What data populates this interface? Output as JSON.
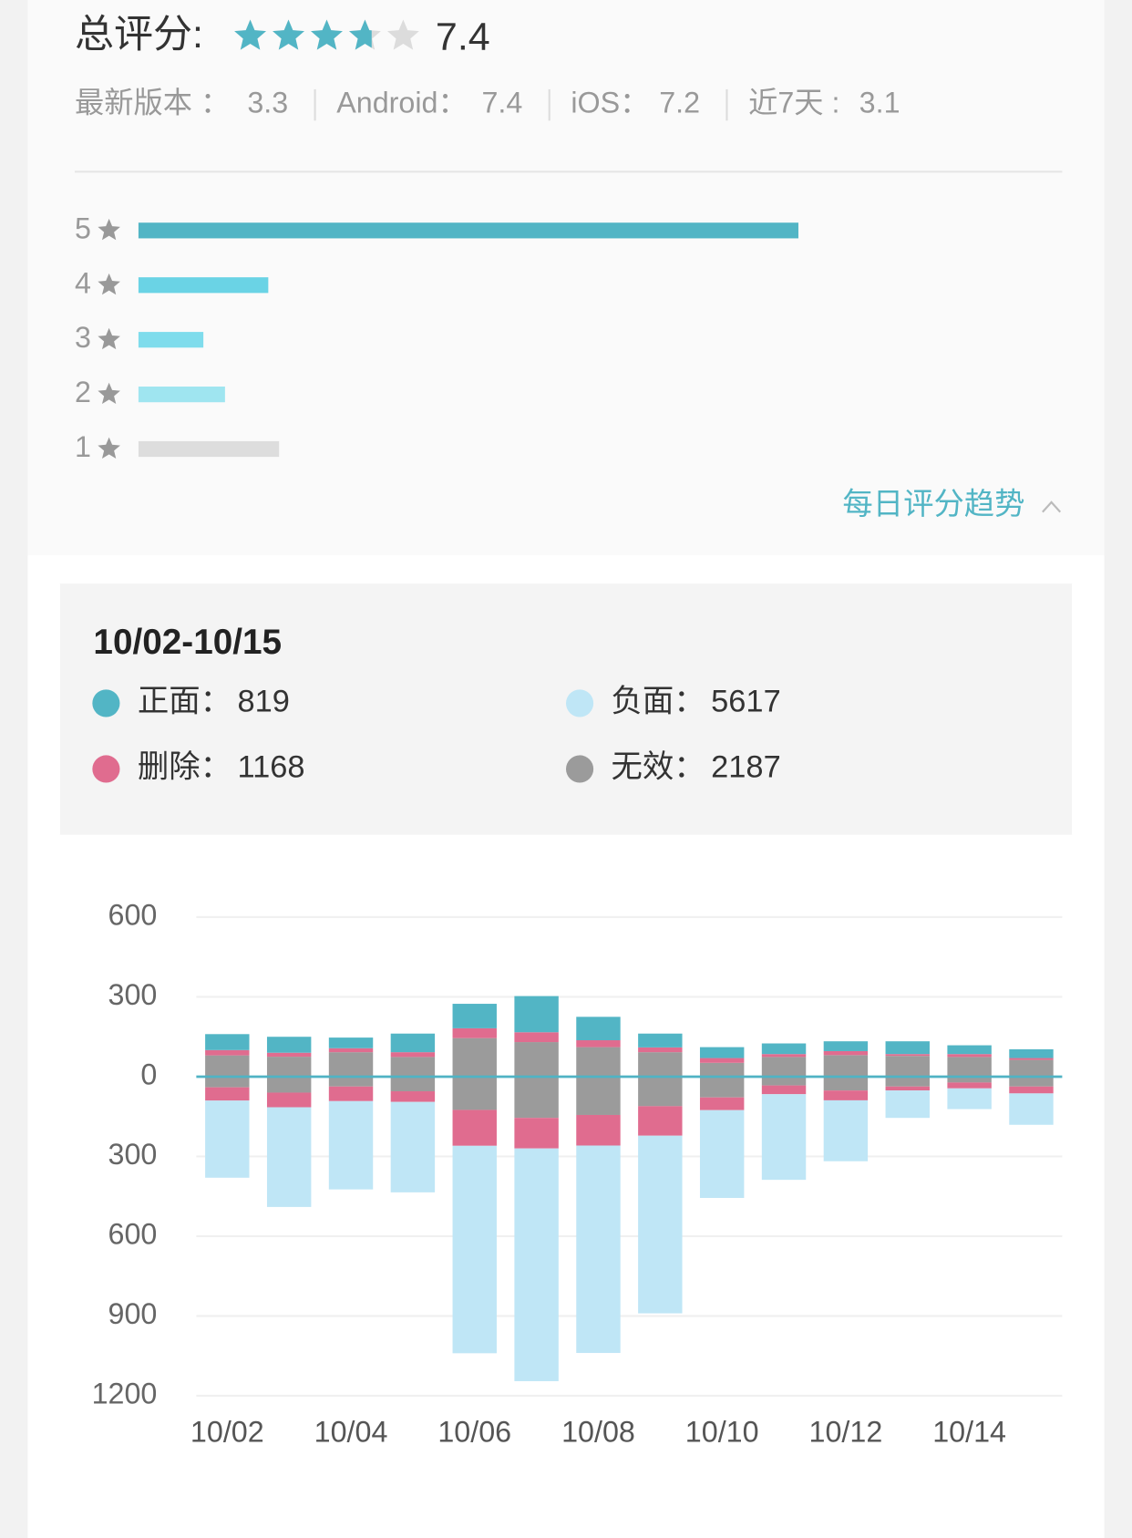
{
  "rating": {
    "title": "总评分:",
    "score": 7.4
  },
  "versions": [
    {
      "label": "最新版本 ：",
      "value": 3.3
    },
    {
      "label": "Android：",
      "value": 7.4
    },
    {
      "label": "iOS：",
      "value": 7.2
    },
    {
      "label": "近7天 :",
      "value": 3.1
    }
  ],
  "distribution": [
    {
      "label": "5",
      "value": 61,
      "color": "#52b5c5"
    },
    {
      "label": "4",
      "value": 12,
      "color": "#6ad3e5"
    },
    {
      "label": "3",
      "value": 6,
      "color": "#7fdcec"
    },
    {
      "label": "2",
      "value": 8,
      "color": "#9fe5f0"
    },
    {
      "label": "1",
      "value": 13,
      "color": "#dddddd"
    }
  ],
  "trend_link": "每日评分趋势",
  "chart_data": {
    "type": "bar",
    "title": "10/02-10/15",
    "categories": [
      "10/02",
      null,
      "10/04",
      null,
      "10/06",
      null,
      "10/08",
      null,
      "10/10",
      null,
      "10/12",
      null,
      "10/14",
      null
    ],
    "series": [
      {
        "name": "正面：",
        "total": 819,
        "color": "#52b5c5",
        "values": [
          60,
          60,
          40,
          70,
          92,
          136,
          88,
          52,
          41,
          40,
          37,
          48,
          33,
          33
        ]
      },
      {
        "name": "负面：",
        "total": 5617,
        "color": "#bfe6f6",
        "values": [
          -290,
          -375,
          -332,
          -340,
          -780,
          -875,
          -780,
          -668,
          -330,
          -322,
          -229,
          -103,
          -78,
          -118
        ]
      },
      {
        "name": "删除：",
        "total": 1168,
        "color": "#e06c8f",
        "values": [
          20,
          15,
          15,
          18,
          37,
          37,
          26,
          18,
          18,
          11,
          15,
          7,
          11,
          7
        ],
        "values_below": [
          -50,
          -55,
          -55,
          -40,
          -135,
          -115,
          -115,
          -111,
          -48,
          -33,
          -37,
          -15,
          -22,
          -26
        ]
      },
      {
        "name": "无效：",
        "total": 2187,
        "color": "#9b9b9b",
        "values": [
          80,
          75,
          92,
          74,
          145,
          130,
          111,
          92,
          52,
          74,
          81,
          78,
          74,
          63
        ],
        "values_below": [
          -40,
          -60,
          -37,
          -55,
          -125,
          -155,
          -144,
          -111,
          -78,
          -33,
          -52,
          -37,
          -22,
          -37
        ]
      }
    ],
    "ylim": [
      -1200,
      600
    ],
    "yticks": [
      600,
      300,
      0,
      {
        "value": -300,
        "label": "300"
      },
      {
        "value": -600,
        "label": "600"
      },
      {
        "value": -900,
        "label": "900"
      },
      {
        "value": -1200,
        "label": "1200"
      }
    ],
    "grid": true
  }
}
